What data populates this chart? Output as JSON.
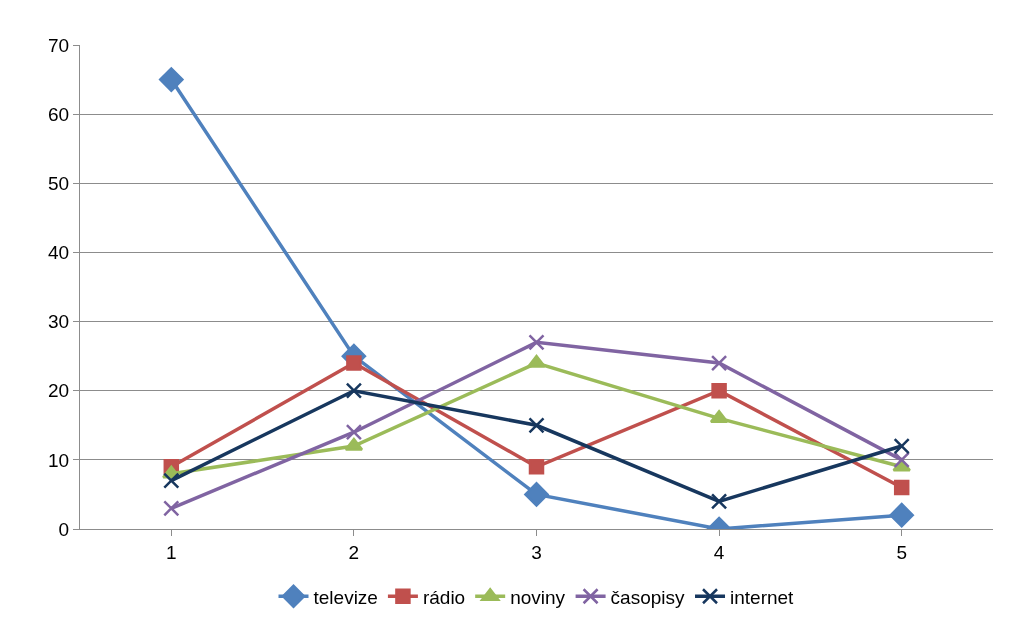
{
  "chart_data": {
    "type": "line",
    "categories": [
      "1",
      "2",
      "3",
      "4",
      "5"
    ],
    "series": [
      {
        "name": "televize",
        "color": "#4f81bd",
        "marker": "diamond",
        "values": [
          65,
          25,
          5,
          0,
          2
        ]
      },
      {
        "name": "rádio",
        "color": "#c0504d",
        "marker": "square",
        "values": [
          9,
          24,
          9,
          20,
          6
        ]
      },
      {
        "name": "noviny",
        "color": "#9bbb59",
        "marker": "triangle",
        "values": [
          8,
          12,
          24,
          16,
          9
        ]
      },
      {
        "name": "časopisy",
        "color": "#8064a2",
        "marker": "cross",
        "values": [
          3,
          14,
          27,
          24,
          10
        ]
      },
      {
        "name": "internet",
        "color": "#17375e",
        "marker": "cross",
        "values": [
          7,
          20,
          15,
          4,
          12
        ]
      }
    ],
    "ylim": [
      0,
      70
    ],
    "yticks": [
      0,
      10,
      20,
      30,
      40,
      50,
      60,
      70
    ],
    "grid": "y",
    "legend": "bottom"
  }
}
